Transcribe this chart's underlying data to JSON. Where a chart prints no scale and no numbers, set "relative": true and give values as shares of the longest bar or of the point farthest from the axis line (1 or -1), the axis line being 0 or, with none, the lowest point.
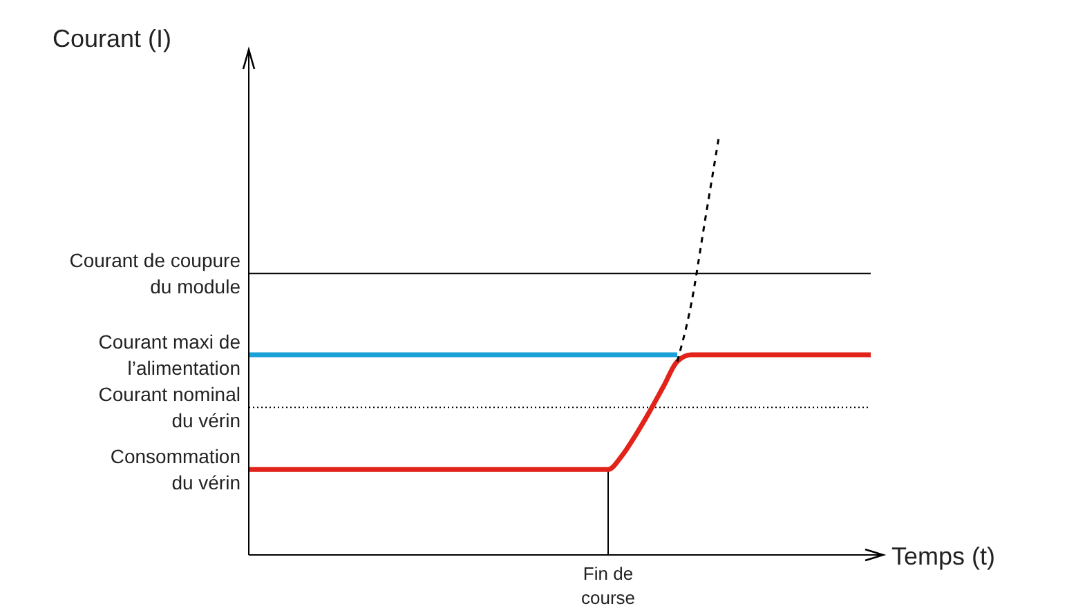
{
  "chart_data": {
    "type": "line",
    "relative": true,
    "xlabel": "Temps (t)",
    "ylabel": "Courant (I)",
    "legend": false,
    "marker": "none",
    "grid": false,
    "categories": [
      null,
      null,
      null,
      null,
      null,
      null,
      null,
      null,
      null,
      null,
      null,
      null,
      null,
      null,
      null,
      null,
      null,
      null,
      null,
      null,
      null,
      null,
      null,
      null,
      null,
      null,
      null,
      null,
      null,
      null,
      null,
      null,
      null,
      null,
      null,
      null,
      null,
      null,
      null,
      null,
      null,
      null,
      null,
      null,
      null,
      null
    ],
    "series": [
      {
        "name": "Consommation\ndu vérin",
        "color": "#e2231a",
        "line_style": "solid",
        "values": [
          0.205,
          0.205,
          0.205,
          0.205,
          0.205,
          0.205,
          0.205,
          0.205,
          0.205,
          0.205,
          0.205,
          0.205,
          0.205,
          0.205,
          0.205,
          0.205,
          0.205,
          0.205,
          0.205,
          0.205,
          0.205,
          0.205,
          0.205,
          0.205,
          0.205,
          0.205,
          0.205,
          0.238,
          0.288,
          0.344,
          0.404,
          0.464,
          0.48,
          0.48,
          0.48,
          0.48,
          0.48,
          0.48,
          0.48,
          0.48,
          0.48,
          0.48,
          0.48,
          0.48,
          0.48,
          0.48
        ]
      },
      {
        "name": "Courant maxi de\nl’alimentation",
        "color": "#1ba1d8",
        "line_style": "solid",
        "values": [
          0.48,
          0.48,
          0.48,
          0.48,
          0.48,
          0.48,
          0.48,
          0.48,
          0.48,
          0.48,
          0.48,
          0.48,
          0.48,
          0.48,
          0.48,
          0.48,
          0.48,
          0.48,
          0.48,
          0.48,
          0.48,
          0.48,
          0.48,
          0.48,
          0.48,
          0.48,
          0.48,
          0.48,
          0.48,
          0.48,
          0.48,
          0.48,
          null,
          null,
          null,
          null,
          null,
          null,
          null,
          null,
          null,
          null,
          null,
          null,
          null,
          null
        ]
      },
      {
        "color": "#000000",
        "line_style": "dashed",
        "values": [
          null,
          null,
          null,
          null,
          null,
          null,
          null,
          null,
          null,
          null,
          null,
          null,
          null,
          null,
          null,
          null,
          null,
          null,
          null,
          null,
          null,
          null,
          null,
          null,
          null,
          null,
          null,
          null,
          null,
          null,
          null,
          0.464,
          0.6,
          0.8,
          1.0,
          null,
          null,
          null,
          null,
          null,
          null,
          null,
          null,
          null,
          null,
          null
        ]
      }
    ],
    "annotations": [
      "Fin de\ncourse"
    ],
    "ref_lines": [
      {
        "axis": "y",
        "value": 0.675,
        "label": "Courant de coupure\ndu module",
        "color": "#000000",
        "line_style": "solid"
      },
      {
        "axis": "y",
        "value": 0.354,
        "label": "Courant nominal\ndu vérin",
        "color": "#000000",
        "line_style": "dotted"
      }
    ]
  }
}
